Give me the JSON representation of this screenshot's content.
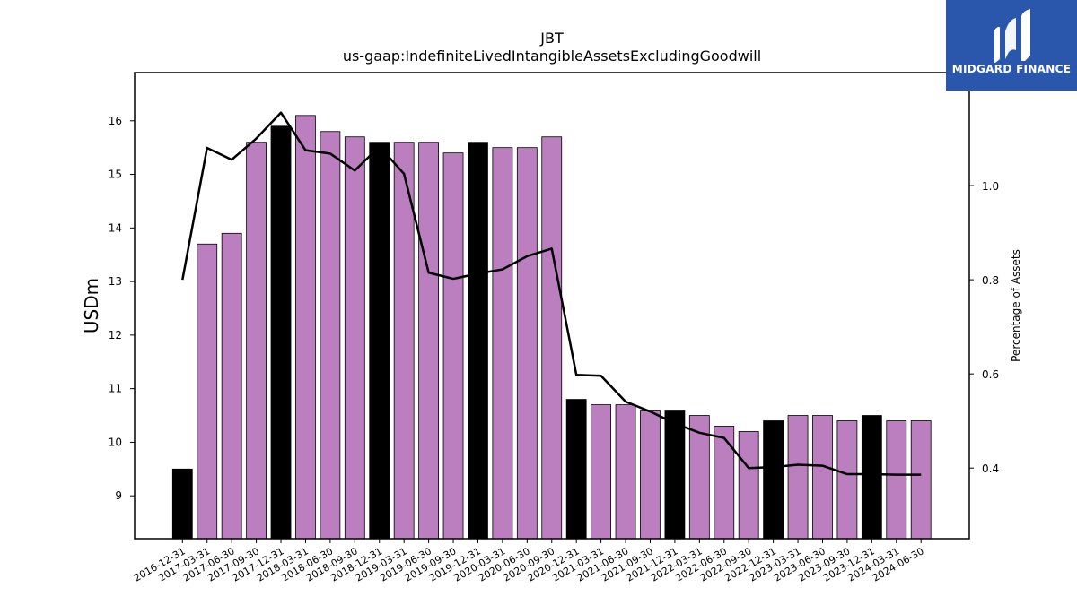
{
  "brand": {
    "name": "MIDGARD FINANCE",
    "bg_color": "#2a57ab"
  },
  "chart_data": {
    "type": "bar",
    "title": "JBT",
    "subtitle": "us-gaap:IndefiniteLivedIntangibleAssetsExcludingGoodwill",
    "ylabel": "USDm",
    "y2label": "Percentage of Assets",
    "ylim": [
      8.2,
      16.9
    ],
    "y2lim": [
      0.25,
      1.24
    ],
    "yticks": [
      9,
      10,
      11,
      12,
      13,
      14,
      15,
      16
    ],
    "y2ticks": [
      0.4,
      0.6,
      0.8,
      1.0
    ],
    "y2tick_labels": [
      "0.4",
      "0.6",
      "0.8",
      "1.0"
    ],
    "categories": [
      "2016-12-31",
      "2017-03-31",
      "2017-06-30",
      "2017-09-30",
      "2017-12-31",
      "2018-03-31",
      "2018-06-30",
      "2018-09-30",
      "2018-12-31",
      "2019-03-31",
      "2019-06-30",
      "2019-09-30",
      "2019-12-31",
      "2020-03-31",
      "2020-06-30",
      "2020-09-30",
      "2020-12-31",
      "2021-03-31",
      "2021-06-30",
      "2021-09-30",
      "2021-12-31",
      "2022-03-31",
      "2022-06-30",
      "2022-09-30",
      "2022-12-31",
      "2023-03-31",
      "2023-06-30",
      "2023-09-30",
      "2023-12-31",
      "2024-03-31",
      "2024-06-30"
    ],
    "series": [
      {
        "kind": "bar",
        "values": [
          9.5,
          13.7,
          13.9,
          15.6,
          15.9,
          16.1,
          15.8,
          15.7,
          15.6,
          15.6,
          15.6,
          15.4,
          15.6,
          15.5,
          15.5,
          15.7,
          10.8,
          10.7,
          10.7,
          10.6,
          10.6,
          10.5,
          10.3,
          10.2,
          10.4,
          10.5,
          10.5,
          10.4,
          10.5,
          10.4,
          10.4
        ],
        "highlight": [
          true,
          false,
          false,
          false,
          true,
          false,
          false,
          false,
          true,
          false,
          false,
          false,
          true,
          false,
          false,
          false,
          true,
          false,
          false,
          false,
          true,
          false,
          false,
          false,
          true,
          false,
          false,
          false,
          true,
          false,
          false
        ],
        "color": "#bb7fbf",
        "highlight_color": "#000000"
      },
      {
        "kind": "line",
        "axis": "right",
        "values": [
          0.8,
          1.08,
          1.055,
          1.1,
          1.155,
          1.075,
          1.068,
          1.032,
          1.083,
          1.025,
          0.815,
          0.802,
          0.813,
          0.822,
          0.85,
          0.866,
          0.598,
          0.596,
          0.541,
          0.52,
          0.495,
          0.475,
          0.464,
          0.4,
          0.402,
          0.407,
          0.405,
          0.387,
          0.387,
          0.386,
          0.386
        ],
        "color": "#000000"
      }
    ],
    "grid": false,
    "legend": "none"
  }
}
